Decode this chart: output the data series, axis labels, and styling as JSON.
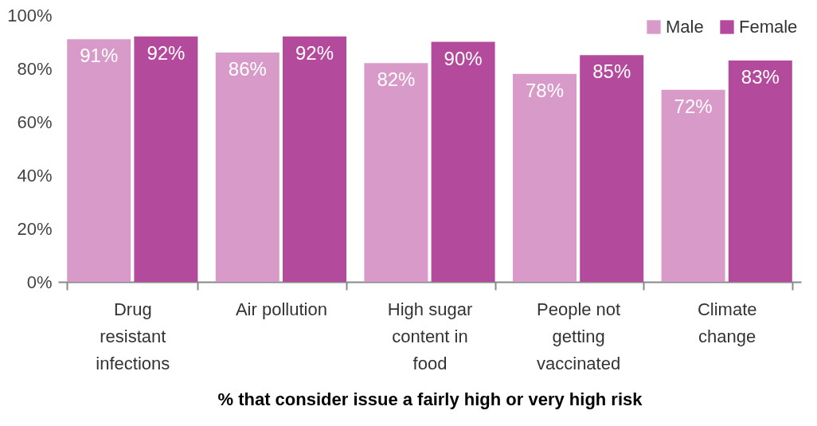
{
  "chart_data": {
    "type": "bar",
    "xlabel": "% that consider issue a fairly high or very high risk",
    "categories": [
      "Drug resistant infections",
      "Air pollution",
      "High sugar content in food",
      "People not getting vaccinated",
      "Climate change"
    ],
    "series": [
      {
        "name": "Male",
        "color": "#d89bc9",
        "values": [
          91,
          86,
          82,
          78,
          72
        ],
        "value_labels": [
          "91%",
          "86%",
          "82%",
          "78%",
          "72%"
        ]
      },
      {
        "name": "Female",
        "color": "#b34a9c",
        "values": [
          92,
          92,
          90,
          85,
          83
        ],
        "value_labels": [
          "92%",
          "92%",
          "90%",
          "85%",
          "83%"
        ]
      }
    ],
    "ylim": [
      0,
      100
    ],
    "yticks": [
      {
        "value": 0,
        "label": "0%"
      },
      {
        "value": 20,
        "label": "20%"
      },
      {
        "value": 40,
        "label": "40%"
      },
      {
        "value": 60,
        "label": "60%"
      },
      {
        "value": 80,
        "label": "80%"
      },
      {
        "value": 100,
        "label": "100%"
      }
    ],
    "grid": false,
    "legend": "top right"
  }
}
